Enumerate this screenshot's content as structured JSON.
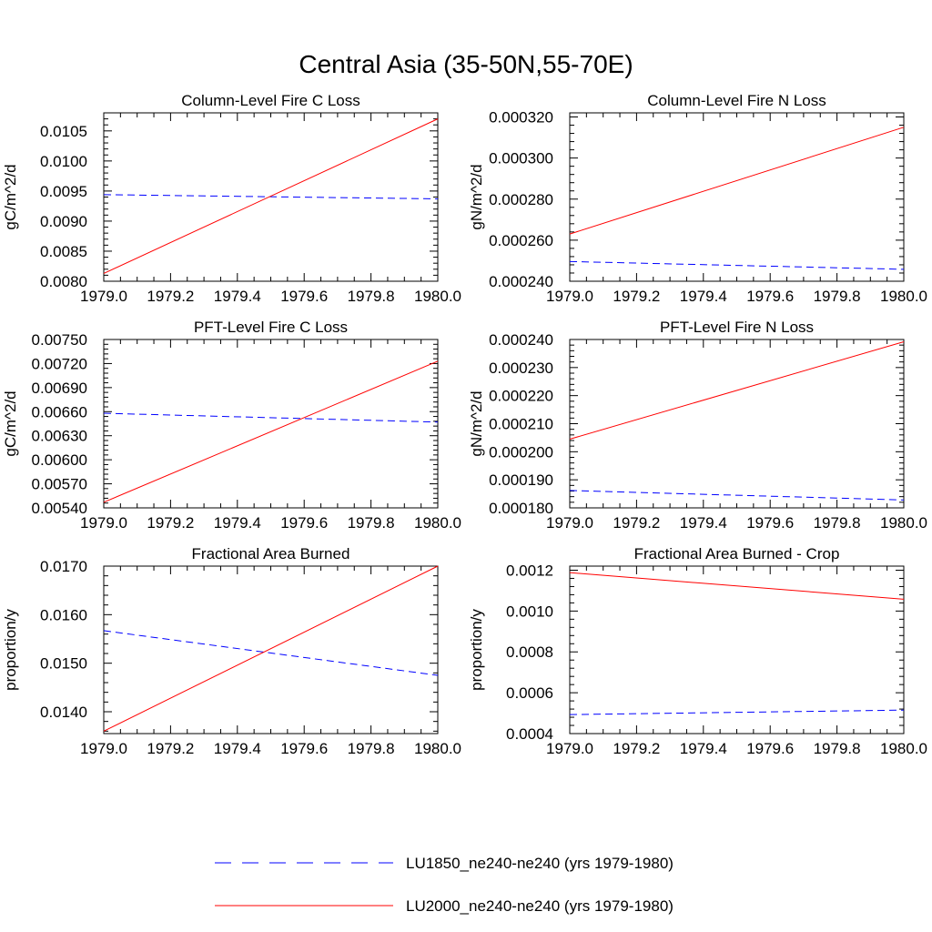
{
  "figure_title": "Central Asia (35-50N,55-70E)",
  "legend": {
    "items": [
      {
        "label": "LU1850_ne240-ne240 (yrs 1979-1980)",
        "color": "#0000ff",
        "dash": "dashed"
      },
      {
        "label": "LU2000_ne240-ne240 (yrs 1979-1980)",
        "color": "#ff0000",
        "dash": "solid"
      }
    ]
  },
  "chart_data": [
    {
      "type": "line",
      "title": "Column-Level Fire C Loss",
      "ylabel": "gC/m^2/d",
      "xlabel": "",
      "xlim": [
        1979.0,
        1980.0
      ],
      "ylim": [
        0.008,
        0.0108
      ],
      "xticks": [
        "1979.0",
        "1979.2",
        "1979.4",
        "1979.6",
        "1979.8",
        "1980.0"
      ],
      "yticks": [
        "0.0080",
        "0.0085",
        "0.0090",
        "0.0095",
        "0.0100",
        "0.0105"
      ],
      "x": [
        1979.0,
        1980.0
      ],
      "series": [
        {
          "name": "LU1850_ne240-ne240 (yrs 1979-1980)",
          "values": [
            0.00944,
            0.00937
          ]
        },
        {
          "name": "LU2000_ne240-ne240 (yrs 1979-1980)",
          "values": [
            0.00813,
            0.0107
          ]
        }
      ]
    },
    {
      "type": "line",
      "title": "Column-Level Fire N Loss",
      "ylabel": "gN/m^2/d",
      "xlabel": "",
      "xlim": [
        1979.0,
        1980.0
      ],
      "ylim": [
        0.00024,
        0.000322
      ],
      "xticks": [
        "1979.0",
        "1979.2",
        "1979.4",
        "1979.6",
        "1979.8",
        "1980.0"
      ],
      "yticks": [
        "0.000240",
        "0.000260",
        "0.000280",
        "0.000300",
        "0.000320"
      ],
      "x": [
        1979.0,
        1980.0
      ],
      "series": [
        {
          "name": "LU1850_ne240-ne240 (yrs 1979-1980)",
          "values": [
            0.0002496,
            0.0002458
          ]
        },
        {
          "name": "LU2000_ne240-ne240 (yrs 1979-1980)",
          "values": [
            0.000263,
            0.000315
          ]
        }
      ]
    },
    {
      "type": "line",
      "title": "PFT-Level Fire C Loss",
      "ylabel": "gC/m^2/d",
      "xlabel": "",
      "xlim": [
        1979.0,
        1980.0
      ],
      "ylim": [
        0.0054,
        0.0075
      ],
      "xticks": [
        "1979.0",
        "1979.2",
        "1979.4",
        "1979.6",
        "1979.8",
        "1980.0"
      ],
      "yticks": [
        "0.00540",
        "0.00570",
        "0.00600",
        "0.00630",
        "0.00660",
        "0.00690",
        "0.00720",
        "0.00750"
      ],
      "x": [
        1979.0,
        1980.0
      ],
      "series": [
        {
          "name": "LU1850_ne240-ne240 (yrs 1979-1980)",
          "values": [
            0.00658,
            0.00647
          ]
        },
        {
          "name": "LU2000_ne240-ne240 (yrs 1979-1980)",
          "values": [
            0.00547,
            0.00723
          ]
        }
      ]
    },
    {
      "type": "line",
      "title": "PFT-Level Fire N Loss",
      "ylabel": "gN/m^2/d",
      "xlabel": "",
      "xlim": [
        1979.0,
        1980.0
      ],
      "ylim": [
        0.00018,
        0.00024
      ],
      "xticks": [
        "1979.0",
        "1979.2",
        "1979.4",
        "1979.6",
        "1979.8",
        "1980.0"
      ],
      "yticks": [
        "0.000180",
        "0.000190",
        "0.000200",
        "0.000210",
        "0.000220",
        "0.000230",
        "0.000240"
      ],
      "x": [
        1979.0,
        1980.0
      ],
      "series": [
        {
          "name": "LU1850_ne240-ne240 (yrs 1979-1980)",
          "values": [
            0.0001862,
            0.0001828
          ]
        },
        {
          "name": "LU2000_ne240-ne240 (yrs 1979-1980)",
          "values": [
            0.0002045,
            0.0002392
          ]
        }
      ]
    },
    {
      "type": "line",
      "title": "Fractional Area Burned",
      "ylabel": "proportion/y",
      "xlabel": "",
      "xlim": [
        1979.0,
        1980.0
      ],
      "ylim": [
        0.01355,
        0.017
      ],
      "xticks": [
        "1979.0",
        "1979.2",
        "1979.4",
        "1979.6",
        "1979.8",
        "1980.0"
      ],
      "yticks": [
        "0.0140",
        "0.0150",
        "0.0160",
        "0.0170"
      ],
      "x": [
        1979.0,
        1980.0
      ],
      "series": [
        {
          "name": "LU1850_ne240-ne240 (yrs 1979-1980)",
          "values": [
            0.01567,
            0.01475
          ]
        },
        {
          "name": "LU2000_ne240-ne240 (yrs 1979-1980)",
          "values": [
            0.0136,
            0.017
          ]
        }
      ]
    },
    {
      "type": "line",
      "title": "Fractional Area Burned - Crop",
      "ylabel": "proportion/y",
      "xlabel": "",
      "xlim": [
        1979.0,
        1980.0
      ],
      "ylim": [
        0.0004,
        0.00122
      ],
      "xticks": [
        "1979.0",
        "1979.2",
        "1979.4",
        "1979.6",
        "1979.8",
        "1980.0"
      ],
      "yticks": [
        "0.0004",
        "0.0006",
        "0.0008",
        "0.0010",
        "0.0012"
      ],
      "x": [
        1979.0,
        1980.0
      ],
      "series": [
        {
          "name": "LU1850_ne240-ne240 (yrs 1979-1980)",
          "values": [
            0.000493,
            0.000515
          ]
        },
        {
          "name": "LU2000_ne240-ne240 (yrs 1979-1980)",
          "values": [
            0.001188,
            0.001058
          ]
        }
      ]
    }
  ]
}
